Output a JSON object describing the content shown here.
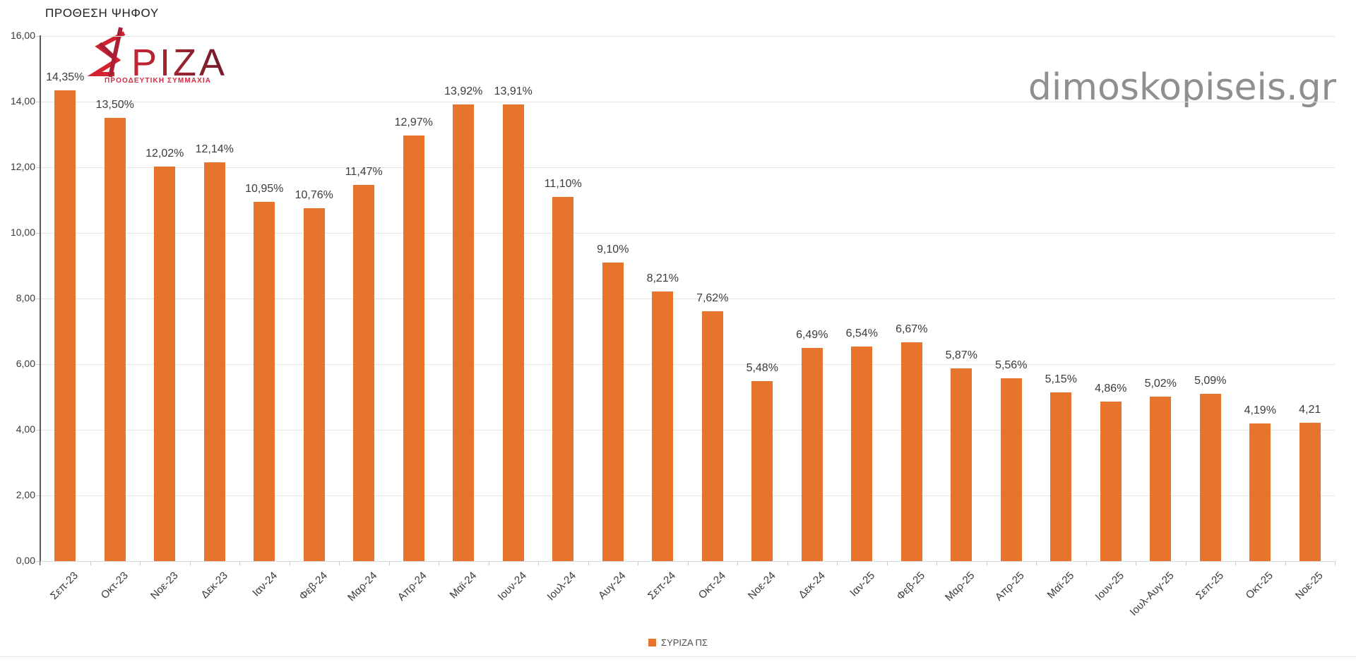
{
  "page": {
    "title": "ΠΡΟΘΕΣΗ ΨΗΦΟΥ",
    "watermark": "dimoskopiseis.gr"
  },
  "logo": {
    "text": "ΡΙΖΑ",
    "subtitle": "ΠΡΟΟΔΕΥΤΙΚΗ ΣΥΜΜΑΧΙΑ"
  },
  "legend": {
    "label": "ΣΥΡΙΖΑ ΠΣ",
    "color": "#e7742d"
  },
  "colors": {
    "bar": "#e7742d",
    "logo_red": "#d2232f",
    "logo_dark_red": "#6f1e2b",
    "logo_subtitle_red": "#d22c45",
    "watermark_gray": "#8f8f8f"
  },
  "chart_data": {
    "type": "bar",
    "title": "ΠΡΟΘΕΣΗ ΨΗΦΟΥ",
    "xlabel": "",
    "ylabel": "",
    "ylim": [
      0,
      16
    ],
    "grid": true,
    "legend_position": "bottom",
    "bar_color": "#e7742d",
    "ytick_values": [
      16,
      14,
      12,
      10,
      8,
      6,
      4,
      2,
      0
    ],
    "ytick_labels": [
      "16,00",
      "14,00",
      "12,00",
      "10,00",
      "8,00",
      "6,00",
      "4,00",
      "2,00",
      "0,00"
    ],
    "categories": [
      "Σεπ-23",
      "Οκτ-23",
      "Νοε-23",
      "Δεκ-23",
      "Ιαν-24",
      "Φεβ-24",
      "Μαρ-24",
      "Απρ-24",
      "Μαϊ-24",
      "Ιουν-24",
      "Ιουλ-24",
      "Αυγ-24",
      "Σεπ-24",
      "Οκτ-24",
      "Νοε-24",
      "Δεκ-24",
      "Ιαν-25",
      "Φεβ-25",
      "Μαρ-25",
      "Απρ-25",
      "Μαϊ-25",
      "Ιουν-25",
      "Ιουλ-Αυγ-25",
      "Σεπ-25",
      "Οκτ-25",
      "Νοε-25"
    ],
    "series": [
      {
        "name": "ΣΥΡΙΖΑ ΠΣ",
        "values": [
          14.35,
          13.5,
          12.02,
          12.14,
          10.95,
          10.76,
          11.47,
          12.97,
          13.92,
          13.91,
          11.1,
          9.1,
          8.21,
          7.62,
          5.48,
          6.49,
          6.54,
          6.67,
          5.87,
          5.56,
          5.15,
          4.86,
          5.02,
          5.09,
          4.19,
          4.21
        ],
        "value_labels": [
          "14,35%",
          "13,50%",
          "12,02%",
          "12,14%",
          "10,95%",
          "10,76%",
          "11,47%",
          "12,97%",
          "13,92%",
          "13,91%",
          "11,10%",
          "9,10%",
          "8,21%",
          "7,62%",
          "5,48%",
          "6,49%",
          "6,54%",
          "6,67%",
          "5,87%",
          "5,56%",
          "5,15%",
          "4,86%",
          "5,02%",
          "5,09%",
          "4,19%",
          "4,21"
        ]
      }
    ]
  }
}
